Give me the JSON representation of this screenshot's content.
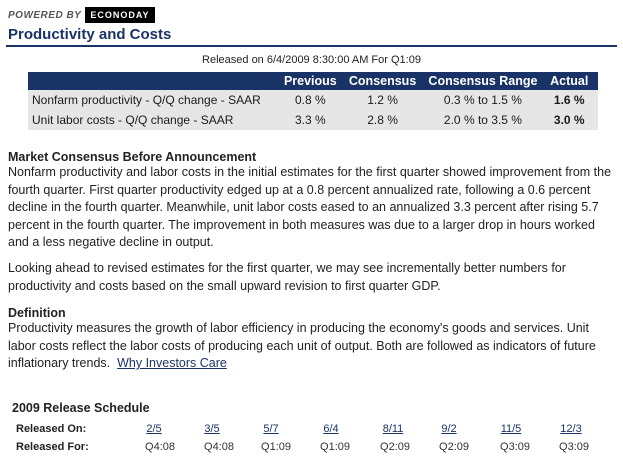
{
  "header": {
    "powered_by": "POWERED BY",
    "logo_text": "ECONODAY",
    "title": "Productivity and Costs"
  },
  "release_line": "Released on 6/4/2009 8:30:00 AM For Q1:09",
  "consensus_table": {
    "columns": [
      "",
      "Previous",
      "Consensus",
      "Consensus Range",
      "Actual"
    ],
    "rows": [
      {
        "label": "Nonfarm productivity - Q/Q change - SAAR",
        "previous": "0.8 %",
        "consensus": "1.2 %",
        "range": "0.3 % to 1.5 %",
        "actual": "1.6 %"
      },
      {
        "label": "Unit labor costs - Q/Q change - SAAR",
        "previous": "3.3 %",
        "consensus": "2.8 %",
        "range": "2.0 % to 3.5 %",
        "actual": "3.0 %"
      }
    ]
  },
  "market_consensus": {
    "heading": "Market Consensus Before Announcement",
    "paragraph1": "Nonfarm productivity and labor costs in the initial estimates for the first quarter showed improvement from the fourth quarter. First quarter productivity edged up at a 0.8 percent annualized rate, following a 0.6 percent decline in the fourth quarter. Meanwhile, unit labor costs eased to an annualized 3.3 percent after rising 5.7 percent in the fourth quarter. The improvement in both measures was due to a larger drop in hours worked and a less negative decline in output.",
    "paragraph2": "Looking ahead to revised estimates for the first quarter, we may see incrementally better numbers for productivity and costs based on the small upward revision to first quarter GDP."
  },
  "definition": {
    "heading": "Definition",
    "text": "Productivity measures the growth of labor efficiency in producing the economy's goods and services. Unit labor costs reflect the labor costs of producing each unit of output. Both are followed as indicators of future inflationary trends.",
    "link": "Why Investors Care"
  },
  "schedule": {
    "heading": "2009 Release Schedule",
    "released_on_label": "Released On:",
    "released_for_label": "Released For:",
    "dates": [
      "2/5",
      "3/5",
      "5/7",
      "6/4",
      "8/11",
      "9/2",
      "11/5",
      "12/3"
    ],
    "periods": [
      "Q4:08",
      "Q4:08",
      "Q1:09",
      "Q1:09",
      "Q2:09",
      "Q2:09",
      "Q3:09",
      "Q3:09"
    ]
  }
}
